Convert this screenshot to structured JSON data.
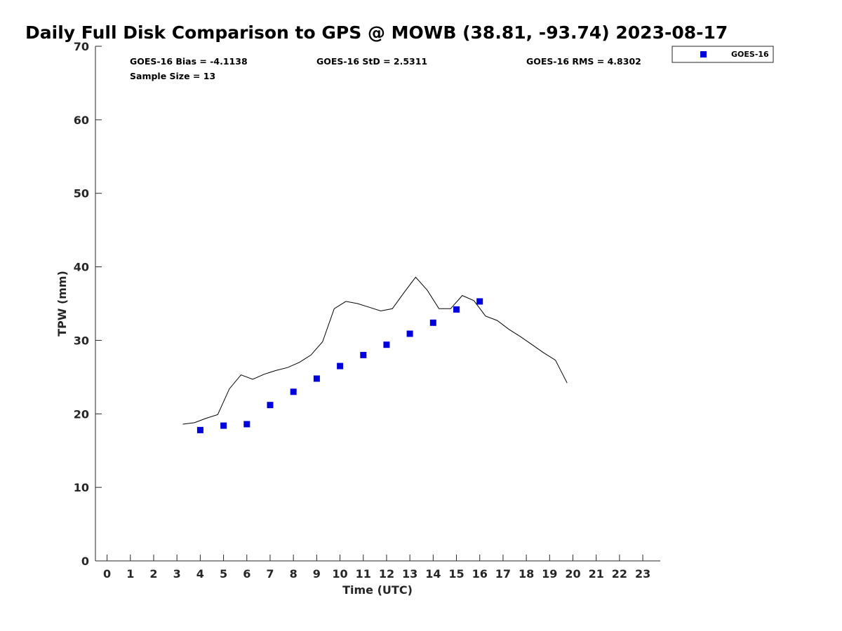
{
  "chart_data": {
    "type": "scatter",
    "title": "Daily Full Disk Comparison to GPS @ MOWB (38.81, -93.74) 2023-08-17",
    "xlabel": "Time (UTC)",
    "ylabel": "TPW (mm)",
    "xlim": [
      -0.5,
      23.75
    ],
    "ylim": [
      0,
      70
    ],
    "x_ticks": [
      0,
      1,
      2,
      3,
      4,
      5,
      6,
      7,
      8,
      9,
      10,
      11,
      12,
      13,
      14,
      15,
      16,
      17,
      18,
      19,
      20,
      21,
      22,
      23
    ],
    "y_ticks": [
      0,
      10,
      20,
      30,
      40,
      50,
      60,
      70
    ],
    "grid": false,
    "legend_position": "top-right-outside",
    "stats": {
      "bias": "GOES-16 Bias = -4.1138",
      "std": "GOES-16 StD = 2.5311",
      "rms": "GOES-16 RMS = 4.8302",
      "sample_size": "Sample Size = 13"
    },
    "series": [
      {
        "name": "GOES-16",
        "type": "scatter",
        "color": "#0000dd",
        "marker": "square",
        "x": [
          4,
          5,
          6,
          7,
          8,
          9,
          10,
          11,
          12,
          13,
          14,
          15,
          16
        ],
        "y": [
          17.8,
          18.4,
          18.6,
          21.2,
          23.0,
          24.8,
          26.5,
          28.0,
          29.4,
          30.9,
          32.4,
          34.2,
          35.3
        ]
      },
      {
        "type": "line",
        "color": "#000000",
        "x": [
          3.25,
          3.75,
          4.25,
          4.75,
          5.25,
          5.75,
          6.25,
          6.75,
          7.25,
          7.75,
          8.25,
          8.75,
          9.25,
          9.75,
          10.25,
          10.75,
          11.25,
          11.75,
          12.25,
          12.75,
          13.25,
          13.75,
          14.25,
          14.75,
          15.25,
          15.75,
          16.25,
          16.75,
          17.25,
          17.75,
          18.25,
          18.75,
          19.25,
          19.75
        ],
        "y": [
          18.6,
          18.8,
          19.4,
          19.9,
          23.4,
          25.3,
          24.7,
          25.4,
          25.9,
          26.3,
          27.0,
          28.0,
          29.8,
          34.3,
          35.3,
          35.0,
          34.5,
          34.0,
          34.3,
          36.5,
          38.6,
          36.8,
          34.3,
          34.3,
          36.1,
          35.4,
          33.3,
          32.7,
          31.5,
          30.5,
          29.4,
          28.3,
          27.3,
          24.2
        ]
      }
    ]
  }
}
